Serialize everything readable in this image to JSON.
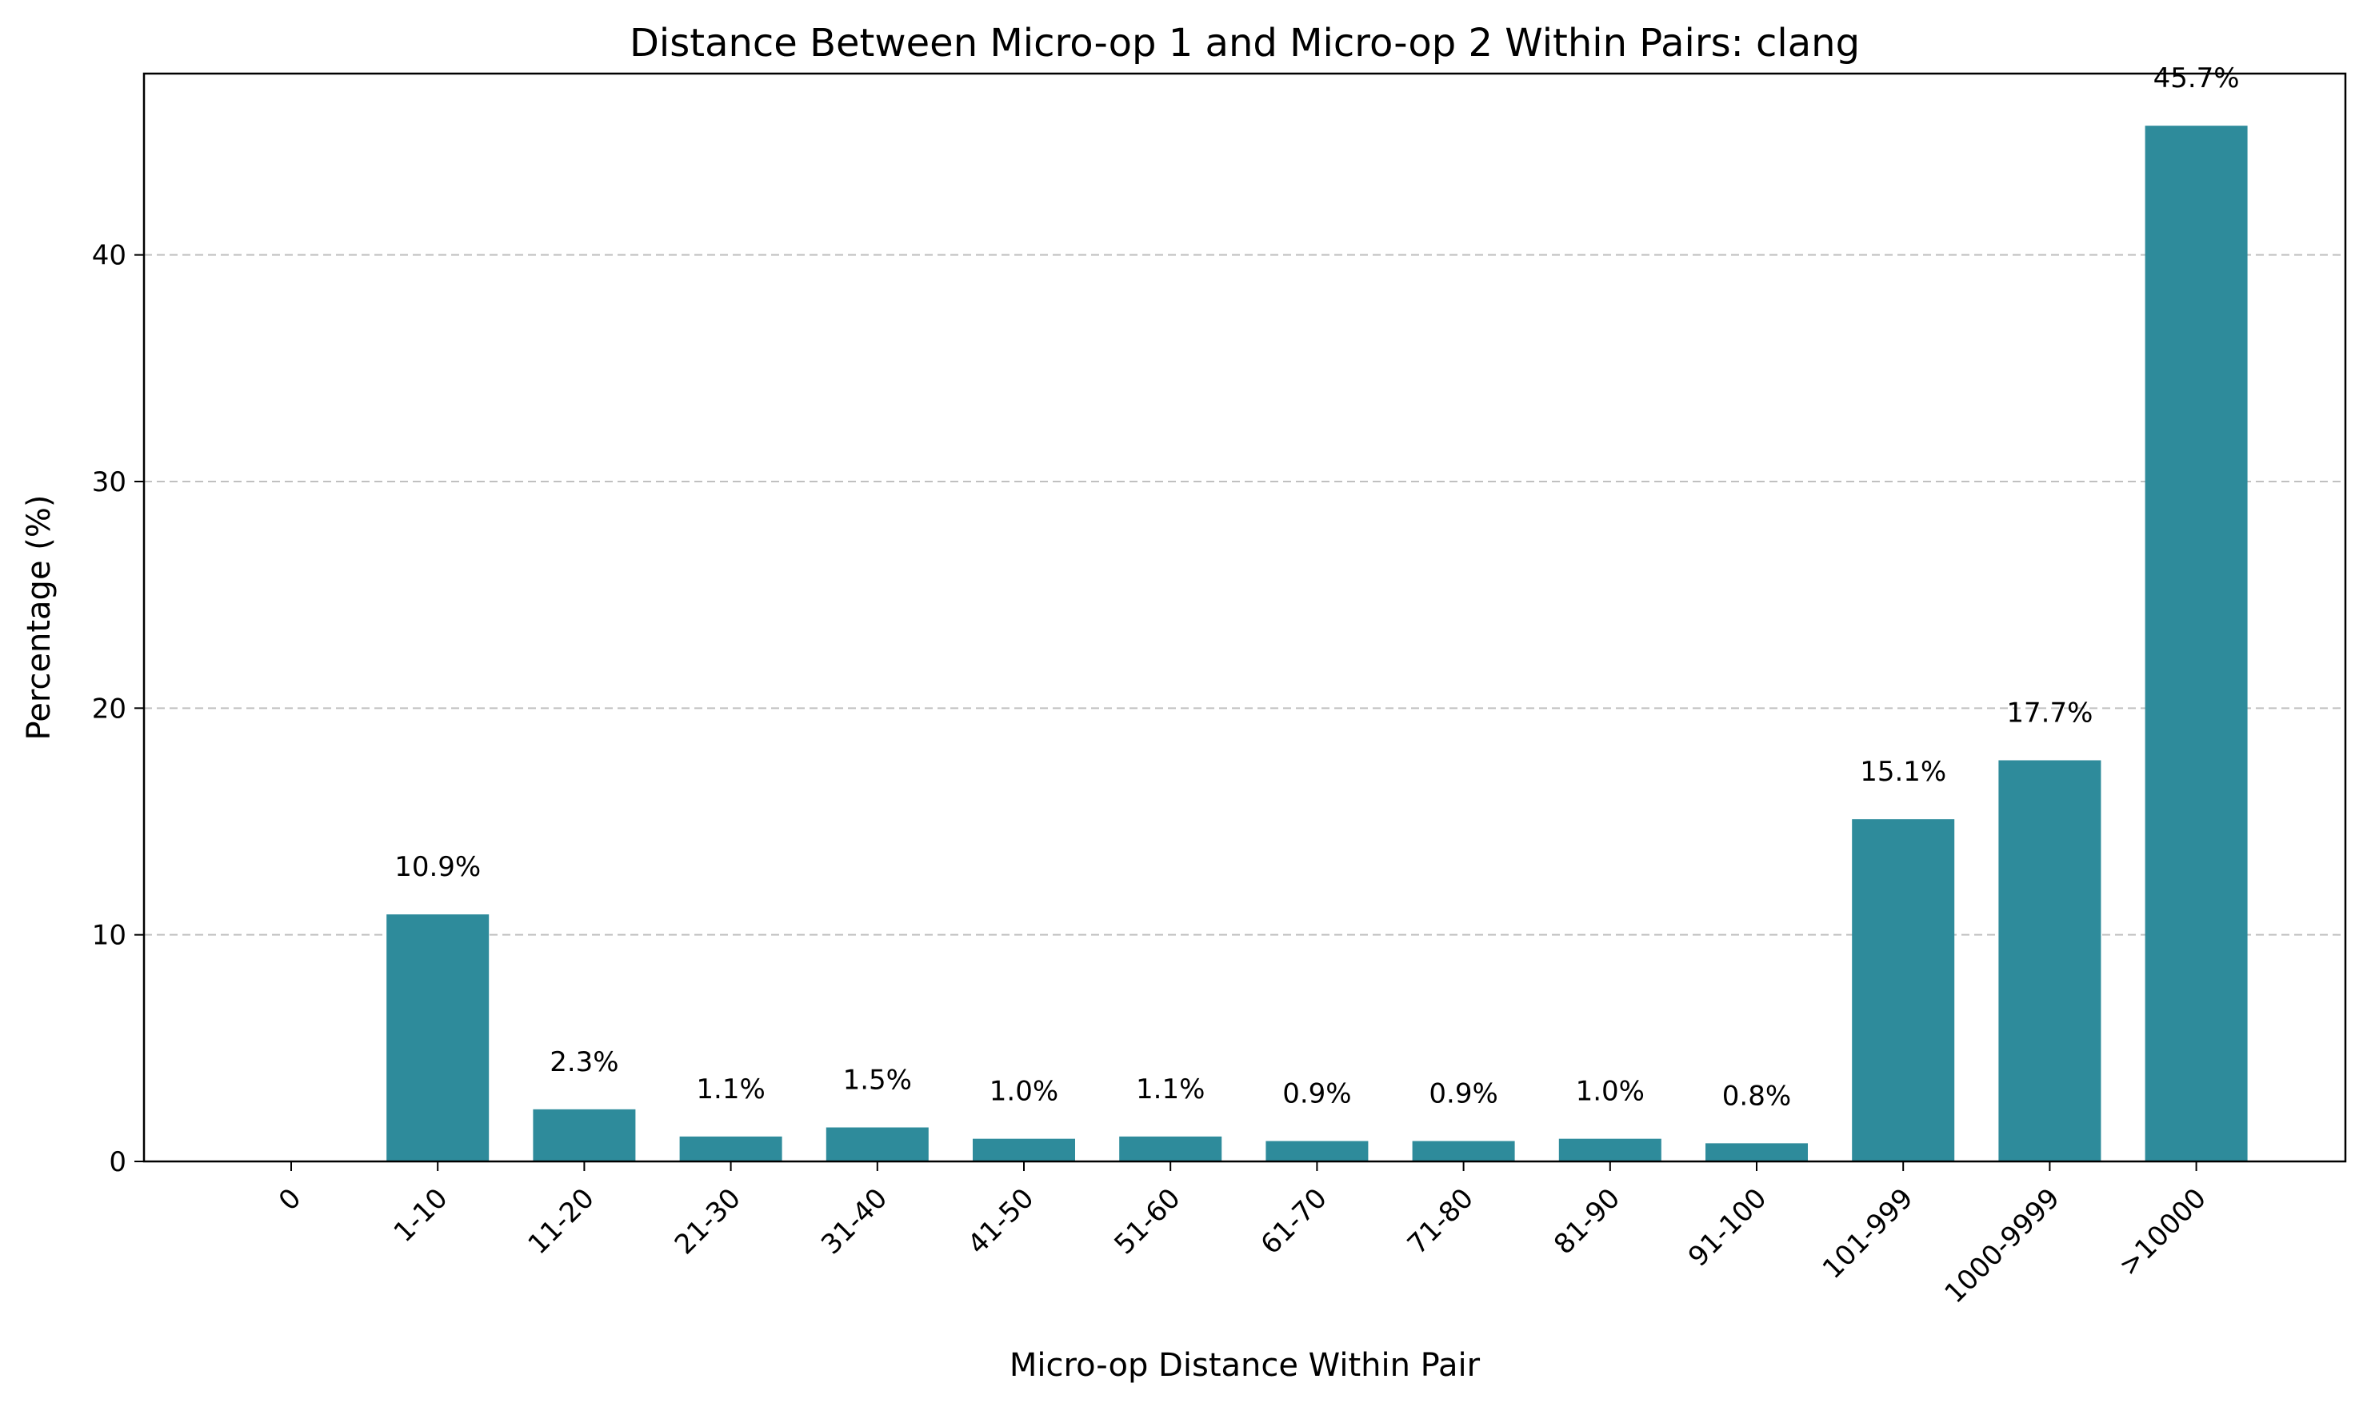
{
  "chart_data": {
    "type": "bar",
    "title": "Distance Between Micro-op 1 and Micro-op 2 Within Pairs: clang",
    "xlabel": "Micro-op Distance Within Pair",
    "ylabel": "Percentage (%)",
    "categories": [
      "0",
      "1-10",
      "11-20",
      "21-30",
      "31-40",
      "41-50",
      "51-60",
      "61-70",
      "71-80",
      "81-90",
      "91-100",
      "101-999",
      "1000-9999",
      ">10000"
    ],
    "values": [
      0.0,
      10.9,
      2.3,
      1.1,
      1.5,
      1.0,
      1.1,
      0.9,
      0.9,
      1.0,
      0.8,
      15.1,
      17.7,
      45.7
    ],
    "data_labels": [
      "",
      "10.9%",
      "2.3%",
      "1.1%",
      "1.5%",
      "1.0%",
      "1.1%",
      "0.9%",
      "0.9%",
      "1.0%",
      "0.8%",
      "15.1%",
      "17.7%",
      "45.7%"
    ],
    "ylim": [
      0,
      48
    ],
    "yticks": [
      0,
      10,
      20,
      30,
      40
    ],
    "grid": "y-dashed",
    "bar_color": "#2e8b9b",
    "grid_color": "#c0c0c0",
    "legend": "none"
  }
}
